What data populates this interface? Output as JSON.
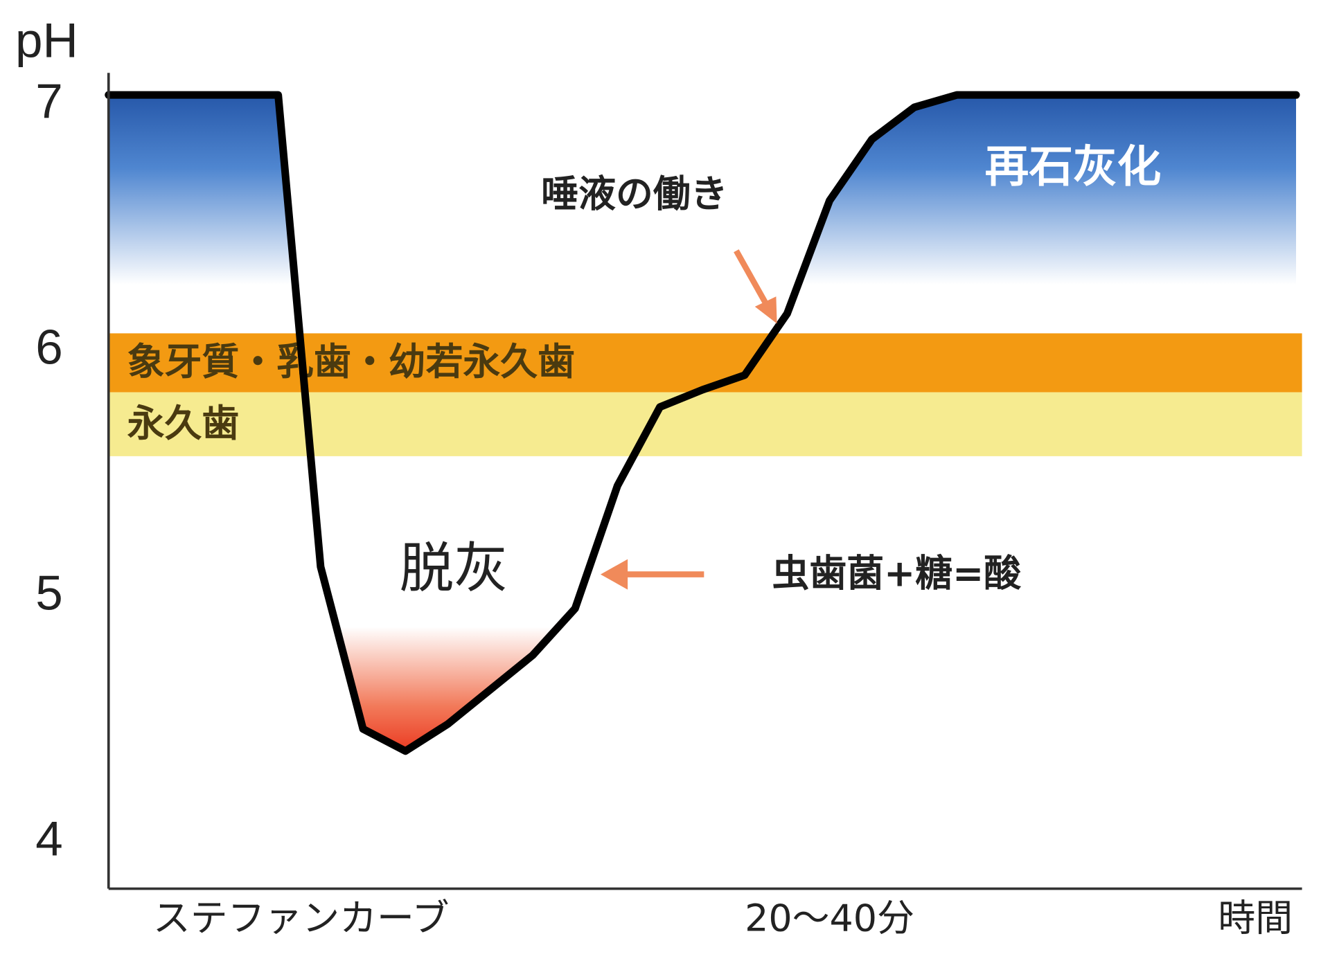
{
  "chart_data": {
    "type": "line",
    "ylabel": "pH",
    "xlabel": "時間",
    "caption": "ステファンカーブ",
    "categories": [
      null,
      null,
      null,
      null,
      null,
      null,
      null,
      null,
      null,
      null,
      null,
      null,
      null,
      null,
      null,
      null,
      null,
      "20〜40分",
      null,
      null,
      null,
      null,
      null,
      null,
      null,
      null,
      null,
      null,
      null
    ],
    "values": [
      7.0,
      7.0,
      7.0,
      7.0,
      7.0,
      5.08,
      4.42,
      4.33,
      4.44,
      4.58,
      4.72,
      4.91,
      5.41,
      5.73,
      5.8,
      5.86,
      6.11,
      6.57,
      6.82,
      6.95,
      7.0,
      7.0,
      7.0,
      7.0,
      7.0,
      7.0,
      7.0,
      7.0,
      7.0
    ],
    "color": "#000000",
    "ylim": [
      3.77,
      7.09
    ],
    "yticks": [
      4,
      5,
      6,
      7
    ],
    "bands": [
      {
        "label": "象牙質・乳歯・幼若永久歯",
        "from": 5.79,
        "to": 6.03,
        "color": "#f39a12"
      },
      {
        "label": "永久歯",
        "from": 5.53,
        "to": 5.79,
        "color": "#f6eb90"
      }
    ],
    "annotations": {
      "remineralization": "再石灰化",
      "saliva": "唾液の働き",
      "demineralization": "脱灰",
      "acid": "虫歯菌+糖=酸"
    }
  }
}
